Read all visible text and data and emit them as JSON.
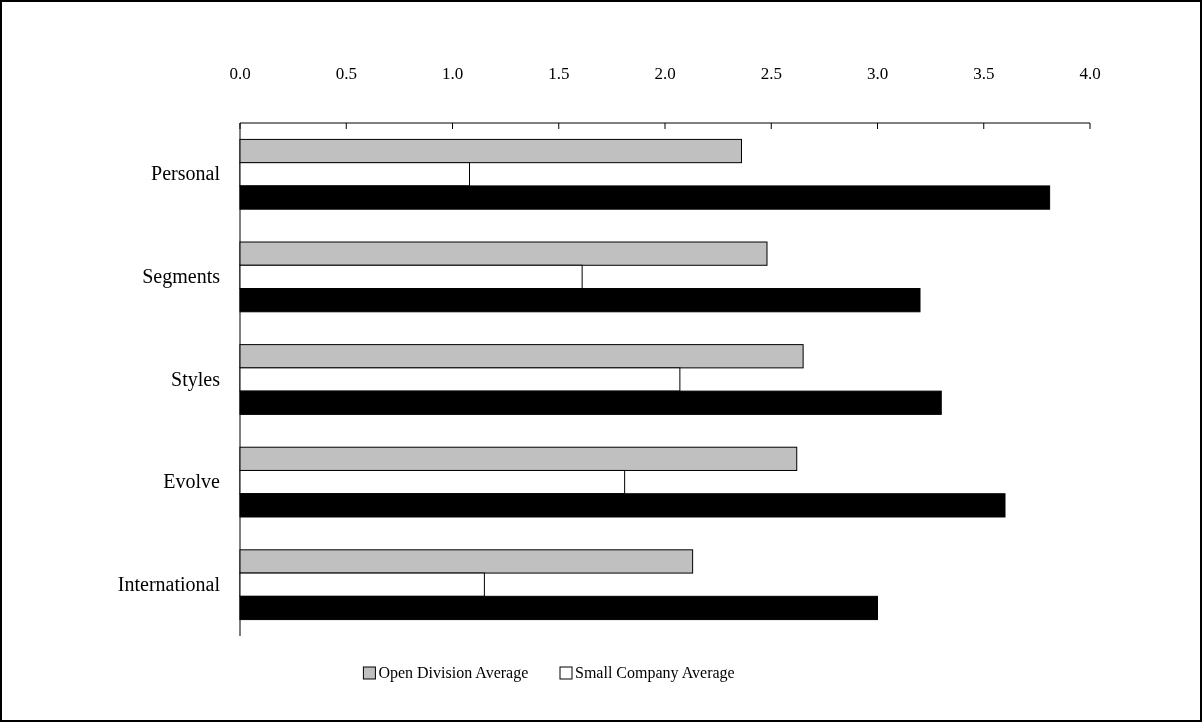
{
  "chart_data": {
    "type": "bar",
    "orientation": "horizontal",
    "categories": [
      "Personal",
      "Segments",
      "Styles",
      "Evolve",
      "International"
    ],
    "series": [
      {
        "name": "Open Division Average",
        "color": "#c0c0c0",
        "values": [
          2.36,
          2.48,
          2.65,
          2.62,
          2.13
        ]
      },
      {
        "name": "Small Company Average",
        "color": "#ffffff",
        "values": [
          1.08,
          1.61,
          2.07,
          1.81,
          1.15
        ]
      },
      {
        "color": "#000000",
        "values": [
          3.81,
          3.2,
          3.3,
          3.6,
          3.0
        ]
      }
    ],
    "xlim": [
      0,
      4
    ],
    "xticks": [
      {
        "value": 0,
        "label": "0.0"
      },
      {
        "value": 0.5,
        "label": "0.5"
      },
      {
        "value": 1,
        "label": "1.0"
      },
      {
        "value": 1.5,
        "label": "1.5"
      },
      {
        "value": 2,
        "label": "2.0"
      },
      {
        "value": 2.5,
        "label": "2.5"
      },
      {
        "value": 3,
        "label": "3.0"
      },
      {
        "value": 3.5,
        "label": "3.5"
      },
      {
        "value": 4,
        "label": "4.0"
      }
    ],
    "grid": false,
    "legend": "bottom"
  }
}
